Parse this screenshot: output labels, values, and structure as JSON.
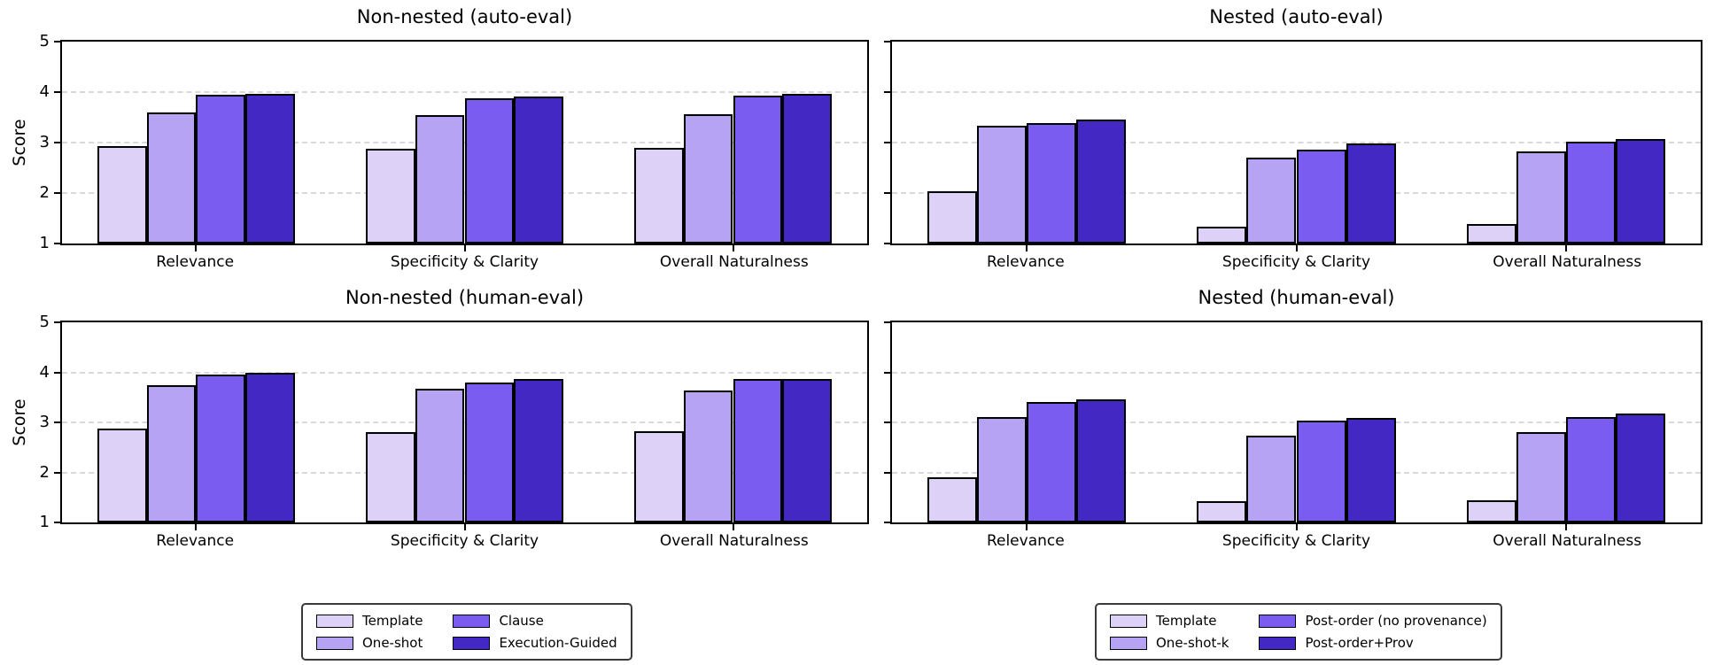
{
  "figure": {
    "ylabel": "Score",
    "palette": [
      "#ddd1f7",
      "#b7a3f3",
      "#7a5cf0",
      "#4328c4"
    ],
    "grid_color": "#d9d9d9",
    "edge_color": "#000000",
    "background": "#ffffff"
  },
  "axis": {
    "ylim": [
      1,
      5
    ],
    "yticks": [
      1,
      2,
      3,
      4,
      5
    ],
    "gridlines_at": [
      2,
      3,
      4
    ],
    "bar_width_pct": 6.15
  },
  "chart_data": [
    {
      "type": "bar",
      "title": "Non-nested (auto-eval)",
      "ylabel": "Score",
      "ylim": [
        1,
        5
      ],
      "grid": "dashed horizontal at 2,3,4",
      "categories": [
        "Relevance",
        "Specificity & Clarity",
        "Overall Naturalness"
      ],
      "series": [
        {
          "name": "Template",
          "values": [
            2.93,
            2.88,
            2.9
          ]
        },
        {
          "name": "One-shot",
          "values": [
            3.6,
            3.55,
            3.57
          ]
        },
        {
          "name": "Clause",
          "values": [
            3.94,
            3.88,
            3.93
          ]
        },
        {
          "name": "Execution-Guided",
          "values": [
            3.97,
            3.91,
            3.97
          ]
        }
      ]
    },
    {
      "type": "bar",
      "title": "Nested (auto-eval)",
      "ylabel": "",
      "ylim": [
        1,
        5
      ],
      "grid": "dashed horizontal at 2,3,4",
      "categories": [
        "Relevance",
        "Specificity & Clarity",
        "Overall Naturalness"
      ],
      "series": [
        {
          "name": "Template",
          "values": [
            2.04,
            1.34,
            1.38
          ]
        },
        {
          "name": "One-shot-k",
          "values": [
            3.33,
            2.7,
            2.83
          ]
        },
        {
          "name": "Post-order (no provenance)",
          "values": [
            3.38,
            2.86,
            3.01
          ]
        },
        {
          "name": "Post-order+Prov",
          "values": [
            3.46,
            2.98,
            3.07
          ]
        }
      ]
    },
    {
      "type": "bar",
      "title": "Non-nested (human-eval)",
      "ylabel": "Score",
      "ylim": [
        1,
        5
      ],
      "grid": "dashed horizontal at 2,3,4",
      "categories": [
        "Relevance",
        "Specificity & Clarity",
        "Overall Naturalness"
      ],
      "series": [
        {
          "name": "Template",
          "values": [
            2.88,
            2.8,
            2.83
          ]
        },
        {
          "name": "One-shot",
          "values": [
            3.74,
            3.67,
            3.63
          ]
        },
        {
          "name": "Clause",
          "values": [
            3.96,
            3.8,
            3.86
          ]
        },
        {
          "name": "Execution-Guided",
          "values": [
            3.99,
            3.87,
            3.87
          ]
        }
      ]
    },
    {
      "type": "bar",
      "title": "Nested (human-eval)",
      "ylabel": "Score",
      "ylim": [
        1,
        5
      ],
      "grid": "dashed horizontal at 2,3,4",
      "categories": [
        "Relevance",
        "Specificity & Clarity",
        "Overall Naturalness"
      ],
      "series": [
        {
          "name": "Template",
          "values": [
            1.9,
            1.43,
            1.45
          ]
        },
        {
          "name": "One-shot-k",
          "values": [
            3.1,
            2.73,
            2.81
          ]
        },
        {
          "name": "Post-order (no provenance)",
          "values": [
            3.4,
            3.03,
            3.11
          ]
        },
        {
          "name": "Post-order+Prov",
          "values": [
            3.46,
            3.08,
            3.17
          ]
        }
      ]
    }
  ],
  "legends": [
    {
      "items": [
        {
          "label": "Template",
          "color": "#ddd1f7"
        },
        {
          "label": "One-shot",
          "color": "#b7a3f3"
        },
        {
          "label": "Clause",
          "color": "#7a5cf0"
        },
        {
          "label": "Execution-Guided",
          "color": "#4328c4"
        }
      ]
    },
    {
      "items": [
        {
          "label": "Template",
          "color": "#ddd1f7"
        },
        {
          "label": "One-shot-k",
          "color": "#b7a3f3"
        },
        {
          "label": "Post-order (no provenance)",
          "color": "#7a5cf0"
        },
        {
          "label": "Post-order+Prov",
          "color": "#4328c4"
        }
      ]
    }
  ]
}
